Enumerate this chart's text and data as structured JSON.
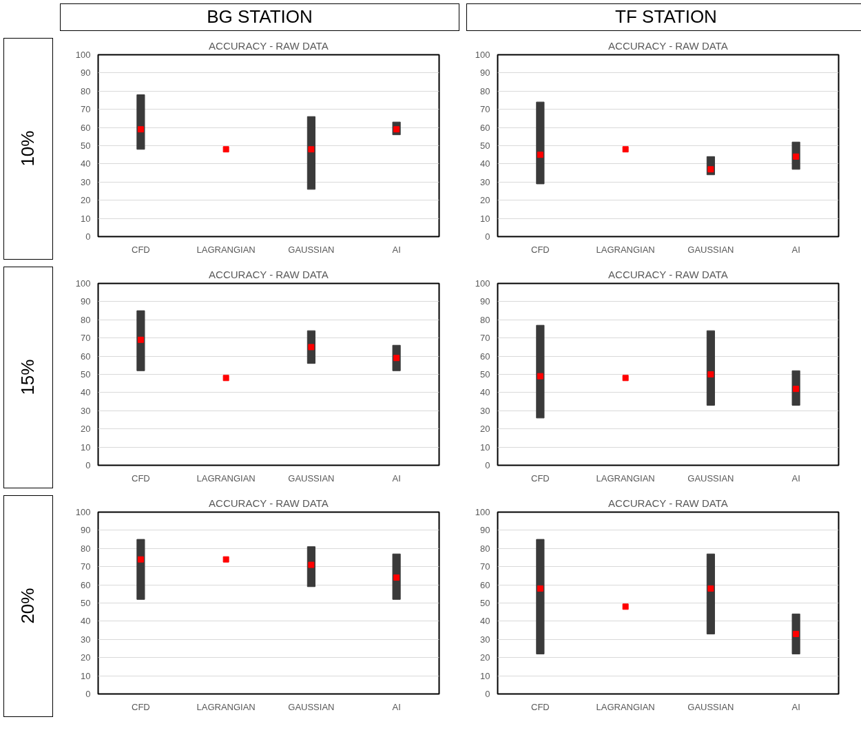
{
  "chart_data": [
    {
      "type": "other",
      "annotations": [
        "BG STATION",
        "TF STATION",
        "10%",
        "15%",
        "20%"
      ]
    },
    {
      "type": "bar",
      "title": "ACCURACY - RAW DATA",
      "categories": [
        "CFD",
        "LAGRANGIAN",
        "GAUSSIAN",
        "AI"
      ],
      "ylim": [
        0,
        100
      ],
      "yticks": [
        0,
        10,
        20,
        30,
        40,
        50,
        60,
        70,
        80,
        90,
        100
      ],
      "grid": "y",
      "series": [
        {
          "type": "bar",
          "color": "#3a3a3a",
          "base": [
            48,
            null,
            26,
            56
          ],
          "values": [
            30,
            null,
            40,
            7
          ]
        },
        {
          "type": "scatter",
          "color": "#ff0000",
          "marker": "square",
          "values": [
            59,
            48,
            48,
            59
          ]
        }
      ]
    },
    {
      "type": "bar",
      "title": "ACCURACY - RAW DATA",
      "categories": [
        "CFD",
        "LAGRANGIAN",
        "GAUSSIAN",
        "AI"
      ],
      "ylim": [
        0,
        100
      ],
      "yticks": [
        0,
        10,
        20,
        30,
        40,
        50,
        60,
        70,
        80,
        90,
        100
      ],
      "grid": "y",
      "series": [
        {
          "type": "bar",
          "color": "#3a3a3a",
          "base": [
            29,
            null,
            34,
            37
          ],
          "values": [
            45,
            null,
            10,
            15
          ]
        },
        {
          "type": "scatter",
          "color": "#ff0000",
          "marker": "square",
          "values": [
            45,
            48,
            37,
            44
          ]
        }
      ]
    },
    {
      "type": "bar",
      "title": "ACCURACY - RAW DATA",
      "categories": [
        "CFD",
        "LAGRANGIAN",
        "GAUSSIAN",
        "AI"
      ],
      "ylim": [
        0,
        100
      ],
      "yticks": [
        0,
        10,
        20,
        30,
        40,
        50,
        60,
        70,
        80,
        90,
        100
      ],
      "grid": "y",
      "series": [
        {
          "type": "bar",
          "color": "#3a3a3a",
          "base": [
            52,
            null,
            56,
            52
          ],
          "values": [
            33,
            null,
            18,
            14
          ]
        },
        {
          "type": "scatter",
          "color": "#ff0000",
          "marker": "square",
          "values": [
            69,
            48,
            65,
            59
          ]
        }
      ]
    },
    {
      "type": "bar",
      "title": "ACCURACY - RAW DATA",
      "categories": [
        "CFD",
        "LAGRANGIAN",
        "GAUSSIAN",
        "AI"
      ],
      "ylim": [
        0,
        100
      ],
      "yticks": [
        0,
        10,
        20,
        30,
        40,
        50,
        60,
        70,
        80,
        90,
        100
      ],
      "grid": "y",
      "series": [
        {
          "type": "bar",
          "color": "#3a3a3a",
          "base": [
            26,
            null,
            33,
            33
          ],
          "values": [
            51,
            null,
            41,
            19
          ]
        },
        {
          "type": "scatter",
          "color": "#ff0000",
          "marker": "square",
          "values": [
            49,
            48,
            50,
            42
          ]
        }
      ]
    },
    {
      "type": "bar",
      "title": "ACCURACY - RAW DATA",
      "categories": [
        "CFD",
        "LAGRANGIAN",
        "GAUSSIAN",
        "AI"
      ],
      "ylim": [
        0,
        100
      ],
      "yticks": [
        0,
        10,
        20,
        30,
        40,
        50,
        60,
        70,
        80,
        90,
        100
      ],
      "grid": "y",
      "series": [
        {
          "type": "bar",
          "color": "#3a3a3a",
          "base": [
            52,
            null,
            59,
            52
          ],
          "values": [
            33,
            null,
            22,
            25
          ]
        },
        {
          "type": "scatter",
          "color": "#ff0000",
          "marker": "square",
          "values": [
            74,
            74,
            71,
            64
          ]
        }
      ]
    },
    {
      "type": "bar",
      "title": "ACCURACY - RAW DATA",
      "categories": [
        "CFD",
        "LAGRANGIAN",
        "GAUSSIAN",
        "AI"
      ],
      "ylim": [
        0,
        100
      ],
      "yticks": [
        0,
        10,
        20,
        30,
        40,
        50,
        60,
        70,
        80,
        90,
        100
      ],
      "grid": "y",
      "series": [
        {
          "type": "bar",
          "color": "#3a3a3a",
          "base": [
            22,
            null,
            33,
            22
          ],
          "values": [
            63,
            null,
            44,
            22
          ]
        },
        {
          "type": "scatter",
          "color": "#ff0000",
          "marker": "square",
          "values": [
            58,
            48,
            58,
            33
          ]
        }
      ]
    }
  ]
}
